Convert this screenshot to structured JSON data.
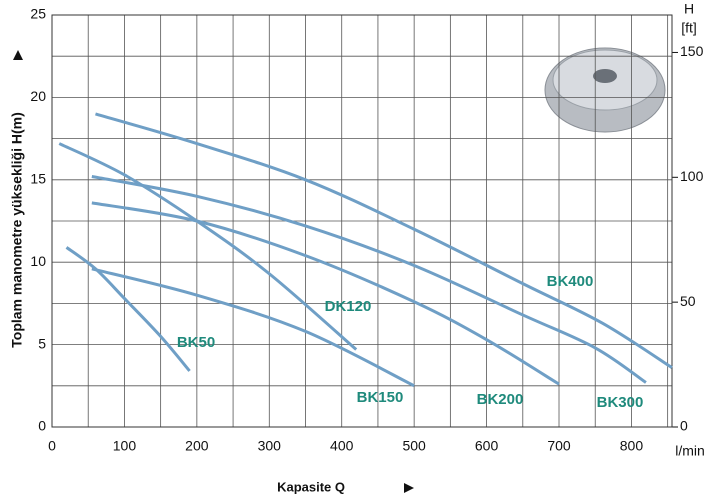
{
  "chart_data": {
    "type": "line",
    "y_label": "Toplam manometre yüksekliği  H(m)",
    "x_label": "Kapasite Q",
    "x_unit": "l/min",
    "y2_label": "H",
    "y2_unit": "[ft]",
    "xlim": [
      0,
      856
    ],
    "xticks": [
      0,
      100,
      200,
      300,
      400,
      500,
      600,
      700,
      800
    ],
    "ylim": [
      0,
      25
    ],
    "yticks": [
      0,
      5,
      10,
      15,
      20,
      25
    ],
    "y2lim": [
      0,
      165
    ],
    "y2ticks": [
      0,
      50,
      100,
      150
    ],
    "grid": true,
    "series": [
      {
        "name": "BK400",
        "color": "#6f9fc6",
        "x": [
          60,
          200,
          350,
          500,
          650,
          760,
          856
        ],
        "values": [
          19,
          17.2,
          15,
          12,
          8.7,
          6.3,
          3.6
        ]
      },
      {
        "name": "DK120",
        "color": "#6f9fc6",
        "x": [
          10,
          100,
          200,
          300,
          420
        ],
        "values": [
          17.2,
          15.3,
          12.5,
          9.3,
          4.7
        ]
      },
      {
        "name": "BK50",
        "color": "#6f9fc6",
        "x": [
          20,
          60,
          100,
          150,
          190
        ],
        "values": [
          10.9,
          9.6,
          7.8,
          5.5,
          3.4
        ]
      },
      {
        "name": "BK300",
        "color": "#6f9fc6",
        "x": [
          55,
          200,
          350,
          500,
          650,
          750,
          820
        ],
        "values": [
          15.2,
          14,
          12.2,
          9.8,
          6.8,
          4.8,
          2.7
        ]
      },
      {
        "name": "BK200",
        "color": "#6f9fc6",
        "x": [
          55,
          200,
          350,
          500,
          600,
          700
        ],
        "values": [
          13.6,
          12.5,
          10.4,
          7.6,
          5.3,
          2.6
        ]
      },
      {
        "name": "BK150",
        "color": "#6f9fc6",
        "x": [
          55,
          200,
          350,
          500
        ],
        "values": [
          9.6,
          8,
          5.8,
          2.5
        ]
      }
    ]
  }
}
